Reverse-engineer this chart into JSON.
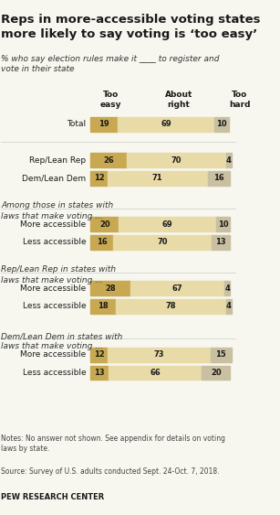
{
  "title": "Reps in more-accessible voting states\nmore likely to say voting is ‘too easy’",
  "subtitle": "% who say election rules make it ____ to register and\nvote in their state",
  "col_headers": [
    "Too\neasy",
    "About\nright",
    "Too\nhard"
  ],
  "rows": [
    {
      "label": "Total",
      "values": [
        19,
        69,
        10
      ],
      "group": 0
    },
    {
      "label": "Rep/Lean Rep",
      "values": [
        26,
        70,
        4
      ],
      "group": 1
    },
    {
      "label": "Dem/Lean Dem",
      "values": [
        12,
        71,
        16
      ],
      "group": 1
    },
    {
      "label": "More accessible",
      "values": [
        20,
        69,
        10
      ],
      "group": 2
    },
    {
      "label": "Less accessible",
      "values": [
        16,
        70,
        13
      ],
      "group": 2
    },
    {
      "label": "More accessible",
      "values": [
        28,
        67,
        4
      ],
      "group": 3
    },
    {
      "label": "Less accessible",
      "values": [
        18,
        78,
        4
      ],
      "group": 3
    },
    {
      "label": "More accessible",
      "values": [
        12,
        73,
        15
      ],
      "group": 4
    },
    {
      "label": "Less accessible",
      "values": [
        13,
        66,
        20
      ],
      "group": 4
    }
  ],
  "group_labels": [
    "",
    "",
    "Among those in states with\nlaws that make voting ...",
    "Rep/Lean Rep in states with\nlaws that make voting ...",
    "Dem/Lean Dem in states with\nlaws that make voting ..."
  ],
  "colors": {
    "too_easy": "#c8a951",
    "about_right": "#e8dba8",
    "too_hard": "#c8c0a0"
  },
  "notes": "Notes: No answer not shown. See appendix for details on voting\nlaws by state.",
  "source": "Source: Survey of U.S. adults conducted Sept. 24-Oct. 7, 2018.",
  "credit": "PEW RESEARCH CENTER",
  "bg_color": "#f7f7f0"
}
